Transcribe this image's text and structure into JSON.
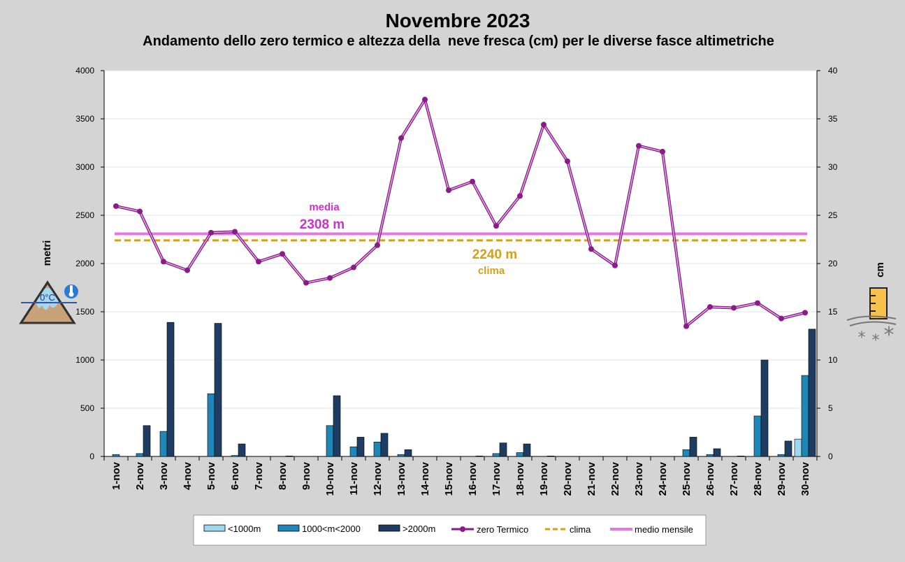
{
  "colors": {
    "page_bg": "#d4d4d4",
    "plot_bg": "#ffffff",
    "lt1000": "#9fd7ef",
    "m1000_2000": "#1f86b8",
    "gt2000": "#1f3d63",
    "zero_termico": "#8b1a8b",
    "clima": "#d4a017",
    "medio_mensile": "#e377e3",
    "media_label": "#cc33cc",
    "clima_label": "#d4a017"
  },
  "icons": {
    "left": "mountain-freezing-level-icon",
    "right": "snow-gauge-icon"
  },
  "chart_data": {
    "type": "bar",
    "title": "Novembre 2023",
    "subtitle": "Andamento dello zero termico e altezza della  neve fresca (cm) per le diverse fasce altimetriche",
    "ylabel_left": "metri",
    "ylabel_right": "cm",
    "ylim_left": [
      0,
      4000
    ],
    "ylim_right": [
      0,
      40
    ],
    "yticks_left": [
      "0",
      "500",
      "1000",
      "1500",
      "2000",
      "2500",
      "3000",
      "3500",
      "4000"
    ],
    "yticks_right": [
      "0",
      "5",
      "10",
      "15",
      "20",
      "25",
      "30",
      "35",
      "40"
    ],
    "grid": true,
    "legend_position": "bottom",
    "categories": [
      "1-nov",
      "2-nov",
      "3-nov",
      "4-nov",
      "5-nov",
      "6-nov",
      "7-nov",
      "8-nov",
      "9-nov",
      "10-nov",
      "11-nov",
      "12-nov",
      "13-nov",
      "14-nov",
      "15-nov",
      "16-nov",
      "17-nov",
      "18-nov",
      "19-nov",
      "20-nov",
      "21-nov",
      "22-nov",
      "23-nov",
      "24-nov",
      "25-nov",
      "26-nov",
      "27-nov",
      "28-nov",
      "29-nov",
      "30-nov"
    ],
    "bar_series": [
      {
        "name": "<1000m",
        "axis": "right",
        "values": [
          0,
          0,
          0,
          0,
          0,
          0,
          0,
          0,
          0,
          0,
          0,
          0,
          0,
          0,
          0,
          0,
          0,
          0,
          0,
          0,
          0,
          0,
          0,
          0,
          0,
          0,
          0,
          0,
          0,
          1.8
        ]
      },
      {
        "name": "1000<m<2000",
        "axis": "right",
        "values": [
          0.2,
          0.3,
          2.6,
          0,
          6.5,
          0.1,
          0,
          0,
          0,
          3.2,
          1,
          1.5,
          0.2,
          0,
          0,
          0,
          0.3,
          0.4,
          0,
          0,
          0,
          0,
          0,
          0,
          0.7,
          0.2,
          0,
          4.2,
          0.2,
          8.4
        ]
      },
      {
        "name": ">2000m",
        "axis": "right",
        "values": [
          0,
          3.2,
          13.9,
          0,
          13.8,
          1.3,
          0,
          0.05,
          0,
          6.3,
          2,
          2.4,
          0.7,
          0,
          0,
          0.05,
          1.4,
          1.3,
          0.05,
          0,
          0,
          0,
          0,
          0,
          2,
          0.8,
          0.05,
          10,
          1.6,
          13.2
        ]
      }
    ],
    "line_series": [
      {
        "name": "zero Termico",
        "axis": "left",
        "values": [
          2595,
          2540,
          2020,
          1930,
          2320,
          2330,
          2020,
          2100,
          1800,
          1850,
          1960,
          2190,
          3300,
          3700,
          2760,
          2850,
          2390,
          2700,
          3440,
          3060,
          2150,
          1980,
          3220,
          3160,
          1350,
          1550,
          1540,
          1590,
          1430,
          1490
        ]
      }
    ],
    "reference_lines": [
      {
        "name": "clima",
        "axis": "left",
        "value": 2240,
        "style": "dashed",
        "label_value": "2240 m",
        "label_text": "clima"
      },
      {
        "name": "medio mensile",
        "axis": "left",
        "value": 2308,
        "style": "solid",
        "label_value": "2308 m",
        "label_text": "media"
      }
    ],
    "legend": [
      "<1000m",
      "1000<m<2000",
      ">2000m",
      "zero Termico",
      "clima",
      "medio mensile"
    ]
  }
}
